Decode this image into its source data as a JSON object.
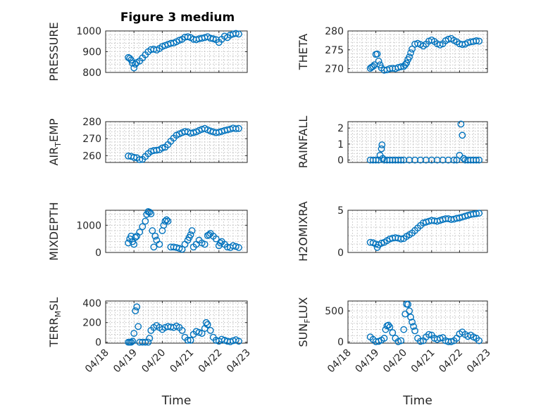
{
  "title": "Figure 3 medium",
  "colors": {
    "series": "#0072bd",
    "axis": "#262626",
    "grid": "#b4b4b4"
  },
  "chart_data": [
    {
      "type": "scatter",
      "ylabel": "PRESSURE",
      "ylim": [
        800,
        1000
      ],
      "yticks": [
        800,
        900,
        1000
      ],
      "xlim": [
        18,
        23
      ],
      "grid": true,
      "x": [
        18.8,
        18.85,
        18.9,
        18.95,
        19.0,
        19.05,
        19.1,
        19.2,
        19.3,
        19.4,
        19.5,
        19.6,
        19.7,
        19.8,
        19.9,
        20.0,
        20.1,
        20.2,
        20.3,
        20.4,
        20.5,
        20.6,
        20.7,
        20.8,
        20.9,
        21.0,
        21.1,
        21.2,
        21.3,
        21.4,
        21.5,
        21.6,
        21.7,
        21.8,
        21.9,
        22.0,
        22.1,
        22.2,
        22.3,
        22.4,
        22.5,
        22.6,
        22.7
      ],
      "y": [
        872,
        868,
        860,
        845,
        822,
        840,
        848,
        855,
        870,
        885,
        900,
        910,
        912,
        908,
        915,
        925,
        930,
        935,
        940,
        942,
        948,
        955,
        960,
        970,
        972,
        968,
        960,
        958,
        962,
        965,
        968,
        972,
        965,
        962,
        958,
        945,
        960,
        975,
        968,
        980,
        985,
        988,
        985
      ]
    },
    {
      "type": "scatter",
      "ylabel": "THETA",
      "ylim": [
        269,
        280
      ],
      "yticks": [
        270,
        275,
        280
      ],
      "xlim": [
        18,
        23
      ],
      "grid": true,
      "x": [
        18.8,
        18.85,
        18.9,
        18.95,
        19.0,
        19.05,
        19.1,
        19.15,
        19.2,
        19.3,
        19.4,
        19.5,
        19.6,
        19.7,
        19.8,
        19.9,
        20.0,
        20.05,
        20.1,
        20.15,
        20.2,
        20.25,
        20.3,
        20.4,
        20.5,
        20.6,
        20.7,
        20.8,
        20.9,
        21.0,
        21.1,
        21.2,
        21.3,
        21.4,
        21.5,
        21.6,
        21.7,
        21.8,
        21.9,
        22.0,
        22.1,
        22.2,
        22.3,
        22.4,
        22.5,
        22.6,
        22.7
      ],
      "y": [
        270.1,
        270.4,
        270.6,
        271.0,
        273.8,
        273.9,
        272.0,
        271.0,
        270.2,
        269.6,
        269.7,
        270.0,
        270.1,
        270.0,
        270.3,
        270.5,
        270.6,
        271.0,
        271.5,
        272.4,
        273.1,
        274.2,
        275.2,
        276.5,
        276.7,
        276.4,
        276.0,
        276.5,
        277.3,
        277.6,
        277.2,
        276.6,
        276.3,
        276.6,
        277.4,
        277.8,
        278.0,
        277.5,
        277.1,
        276.6,
        276.4,
        276.5,
        276.9,
        277.1,
        277.2,
        277.4,
        277.3
      ]
    },
    {
      "type": "scatter",
      "ylabel": "AIR_TEMP",
      "ylim": [
        256,
        280
      ],
      "yticks": [
        260,
        270,
        280
      ],
      "xlim": [
        18,
        23
      ],
      "grid": true,
      "x": [
        18.8,
        18.9,
        19.0,
        19.1,
        19.2,
        19.3,
        19.4,
        19.5,
        19.6,
        19.7,
        19.8,
        19.9,
        20.0,
        20.1,
        20.2,
        20.3,
        20.4,
        20.5,
        20.6,
        20.7,
        20.8,
        20.9,
        21.0,
        21.1,
        21.2,
        21.3,
        21.4,
        21.5,
        21.6,
        21.7,
        21.8,
        21.9,
        22.0,
        22.1,
        22.2,
        22.3,
        22.4,
        22.5,
        22.6,
        22.7
      ],
      "y": [
        259.8,
        259.6,
        259.0,
        258.8,
        257.6,
        257.8,
        259.5,
        261.2,
        262.5,
        263.0,
        263.2,
        263.5,
        264.5,
        265.0,
        266.5,
        268.5,
        270.3,
        272.0,
        272.8,
        273.5,
        274.2,
        274.0,
        273.2,
        273.5,
        274.0,
        274.8,
        275.5,
        276.0,
        275.2,
        274.5,
        274.0,
        273.5,
        273.8,
        274.3,
        274.8,
        275.2,
        275.6,
        276.2,
        275.8,
        276.0
      ]
    },
    {
      "type": "scatter",
      "ylabel": "RAINFALL",
      "ylim": [
        -0.15,
        2.4
      ],
      "yticks": [
        0,
        1,
        2
      ],
      "xlim": [
        18,
        23
      ],
      "grid": true,
      "x": [
        18.8,
        18.9,
        19.0,
        19.1,
        19.15,
        19.2,
        19.22,
        19.25,
        19.3,
        19.4,
        19.5,
        19.6,
        19.7,
        19.8,
        19.9,
        20.0,
        20.2,
        20.4,
        20.6,
        20.8,
        21.0,
        21.2,
        21.4,
        21.6,
        21.8,
        21.9,
        22.0,
        22.05,
        22.1,
        22.15,
        22.2,
        22.3,
        22.4,
        22.5,
        22.6,
        22.7
      ],
      "y": [
        0,
        0,
        0,
        0,
        0.3,
        0.7,
        0.95,
        0.1,
        0,
        0,
        0,
        0,
        0,
        0,
        0,
        0,
        0,
        0,
        0,
        0,
        0,
        0,
        0,
        0,
        0,
        0,
        0.3,
        2.25,
        1.55,
        0.1,
        0,
        0,
        0,
        0,
        0,
        0
      ]
    },
    {
      "type": "scatter",
      "ylabel": "MIXDEPTH",
      "ylim": [
        0,
        1550
      ],
      "yticks": [
        0,
        1000
      ],
      "xlim": [
        18,
        23
      ],
      "grid": true,
      "x": [
        18.8,
        18.85,
        18.9,
        18.95,
        19.0,
        19.05,
        19.1,
        19.2,
        19.3,
        19.4,
        19.45,
        19.5,
        19.55,
        19.6,
        19.65,
        19.7,
        19.75,
        19.8,
        19.9,
        20.0,
        20.05,
        20.1,
        20.15,
        20.2,
        20.3,
        20.4,
        20.5,
        20.6,
        20.7,
        20.8,
        20.9,
        20.95,
        21.0,
        21.05,
        21.1,
        21.2,
        21.3,
        21.4,
        21.5,
        21.6,
        21.65,
        21.7,
        21.8,
        21.9,
        22.0,
        22.05,
        22.1,
        22.2,
        22.3,
        22.4,
        22.5,
        22.6,
        22.7
      ],
      "y": [
        350,
        500,
        600,
        400,
        300,
        550,
        600,
        750,
        950,
        1150,
        1400,
        1500,
        1480,
        1420,
        800,
        200,
        600,
        450,
        300,
        800,
        1000,
        1150,
        1200,
        1150,
        200,
        200,
        180,
        150,
        120,
        300,
        450,
        550,
        650,
        800,
        200,
        300,
        450,
        350,
        300,
        620,
        650,
        700,
        600,
        500,
        250,
        350,
        400,
        300,
        200,
        180,
        250,
        220,
        180
      ]
    },
    {
      "type": "scatter",
      "ylabel": "H2OMIXRA",
      "ylim": [
        0,
        5
      ],
      "yticks": [
        0,
        5
      ],
      "xlim": [
        18,
        23
      ],
      "grid": true,
      "x": [
        18.8,
        18.9,
        19.0,
        19.05,
        19.1,
        19.2,
        19.3,
        19.4,
        19.5,
        19.6,
        19.7,
        19.8,
        19.9,
        20.0,
        20.1,
        20.2,
        20.3,
        20.4,
        20.5,
        20.6,
        20.7,
        20.8,
        20.9,
        21.0,
        21.1,
        21.2,
        21.3,
        21.4,
        21.5,
        21.6,
        21.7,
        21.8,
        21.9,
        22.0,
        22.1,
        22.2,
        22.3,
        22.4,
        22.5,
        22.6,
        22.7
      ],
      "y": [
        1.2,
        1.15,
        1.0,
        0.6,
        0.9,
        1.1,
        1.2,
        1.4,
        1.6,
        1.7,
        1.75,
        1.7,
        1.6,
        1.65,
        1.9,
        2.1,
        2.3,
        2.6,
        2.9,
        3.2,
        3.5,
        3.6,
        3.7,
        3.8,
        3.75,
        3.7,
        3.8,
        3.9,
        4.0,
        4.0,
        3.9,
        3.95,
        4.05,
        4.1,
        4.2,
        4.3,
        4.4,
        4.5,
        4.55,
        4.6,
        4.65
      ]
    },
    {
      "type": "scatter",
      "ylabel": "TERR_MSL",
      "ylim": [
        -10,
        420
      ],
      "yticks": [
        0,
        200,
        400
      ],
      "xlim": [
        18,
        23
      ],
      "grid": true,
      "x": [
        18.8,
        18.85,
        18.9,
        18.95,
        19.0,
        19.05,
        19.1,
        19.15,
        19.2,
        19.3,
        19.4,
        19.5,
        19.55,
        19.6,
        19.7,
        19.8,
        19.9,
        20.0,
        20.1,
        20.2,
        20.3,
        20.4,
        20.5,
        20.6,
        20.7,
        20.8,
        20.9,
        21.0,
        21.1,
        21.2,
        21.3,
        21.4,
        21.5,
        21.55,
        21.6,
        21.7,
        21.8,
        21.9,
        22.0,
        22.1,
        22.2,
        22.3,
        22.4,
        22.5,
        22.6,
        22.7
      ],
      "y": [
        0,
        0,
        0,
        10,
        90,
        320,
        360,
        160,
        0,
        0,
        0,
        0,
        40,
        120,
        150,
        170,
        150,
        130,
        150,
        160,
        155,
        150,
        165,
        150,
        120,
        50,
        20,
        20,
        80,
        110,
        100,
        90,
        140,
        200,
        180,
        120,
        50,
        20,
        10,
        30,
        20,
        10,
        5,
        15,
        25,
        10
      ]
    },
    {
      "type": "scatter",
      "ylabel": "SUN_FLUX",
      "ylim": [
        -20,
        660
      ],
      "yticks": [
        0,
        500
      ],
      "xlim": [
        18,
        23
      ],
      "grid": true,
      "x": [
        18.8,
        18.9,
        19.0,
        19.1,
        19.2,
        19.3,
        19.35,
        19.4,
        19.45,
        19.5,
        19.6,
        19.7,
        19.8,
        19.9,
        20.0,
        20.05,
        20.1,
        20.15,
        20.2,
        20.25,
        20.3,
        20.35,
        20.4,
        20.5,
        20.6,
        20.7,
        20.8,
        20.9,
        21.0,
        21.1,
        21.2,
        21.3,
        21.4,
        21.5,
        21.6,
        21.7,
        21.8,
        21.9,
        22.0,
        22.1,
        22.2,
        22.3,
        22.4,
        22.5,
        22.6,
        22.7
      ],
      "y": [
        80,
        40,
        5,
        10,
        30,
        60,
        200,
        260,
        270,
        240,
        150,
        60,
        5,
        20,
        200,
        450,
        610,
        605,
        500,
        400,
        320,
        250,
        180,
        60,
        10,
        20,
        80,
        120,
        110,
        60,
        40,
        60,
        70,
        20,
        5,
        5,
        20,
        60,
        130,
        160,
        120,
        90,
        110,
        80,
        60,
        20
      ]
    }
  ],
  "xaxis": {
    "ticks": [
      18,
      19,
      20,
      21,
      22,
      23
    ],
    "tick_labels": [
      "04/18",
      "04/19",
      "04/20",
      "04/21",
      "04/22",
      "04/23"
    ],
    "label": "Time"
  }
}
